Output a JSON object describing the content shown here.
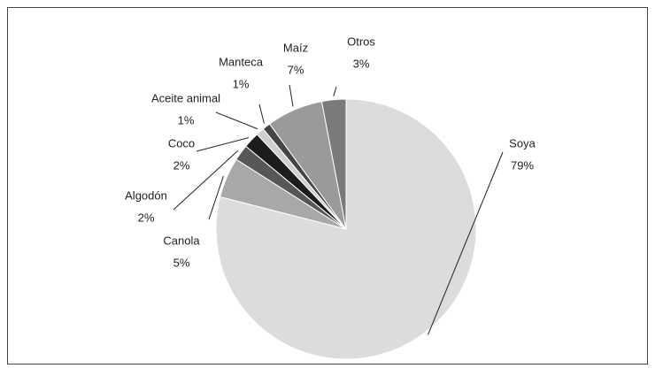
{
  "chart_data": {
    "type": "pie",
    "categories": [
      "Soya",
      "Canola",
      "Algodón",
      "Coco",
      "Aceite animal",
      "Manteca",
      "Maíz",
      "Otros"
    ],
    "values": [
      79,
      5,
      2,
      2,
      1,
      1,
      7,
      3
    ],
    "value_labels": [
      "79%",
      "5%",
      "2%",
      "2%",
      "1%",
      "1%",
      "7%",
      "3%"
    ],
    "colors": [
      "#dcdcdc",
      "#a8a8a8",
      "#575757",
      "#1c1c1c",
      "#cfcfcf",
      "#454545",
      "#9a9a9a",
      "#7a7a7a"
    ]
  }
}
